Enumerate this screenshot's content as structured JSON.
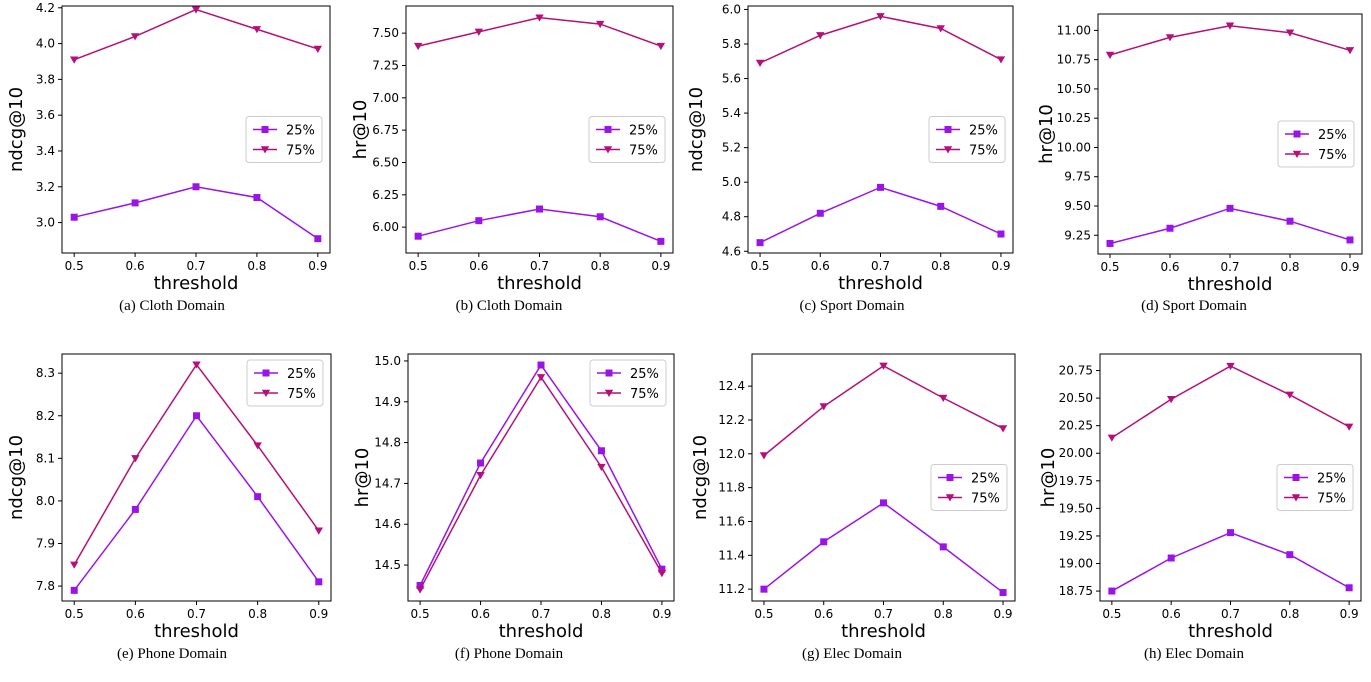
{
  "colors": {
    "s25": "#9a14e8",
    "s75": "#b5107a",
    "axis": "#000000"
  },
  "markers": {
    "s25": "square",
    "s75": "triangle-down"
  },
  "chart_data": [
    {
      "type": "line",
      "caption": "(a)  Cloth Domain",
      "xlabel": "threshold",
      "ylabel": "ndcg@10",
      "x": [
        0.5,
        0.6,
        0.7,
        0.8,
        0.9
      ],
      "xticks": [
        "0.5",
        "0.6",
        "0.7",
        "0.8",
        "0.9"
      ],
      "xlim": [
        0.48,
        0.92
      ],
      "ylim": [
        2.83,
        4.21
      ],
      "yticks": [
        "3.0",
        "3.2",
        "3.4",
        "3.6",
        "3.8",
        "4.0",
        "4.2"
      ],
      "legend": "center-right",
      "series": [
        {
          "name": "25%",
          "values": [
            3.03,
            3.11,
            3.2,
            3.14,
            2.91
          ]
        },
        {
          "name": "75%",
          "values": [
            3.91,
            4.04,
            4.19,
            4.08,
            3.97
          ]
        }
      ]
    },
    {
      "type": "line",
      "caption": "(b)  Cloth Domain",
      "xlabel": "threshold",
      "ylabel": "hr@10",
      "x": [
        0.5,
        0.6,
        0.7,
        0.8,
        0.9
      ],
      "xticks": [
        "0.5",
        "0.6",
        "0.7",
        "0.8",
        "0.9"
      ],
      "xlim": [
        0.48,
        0.92
      ],
      "ylim": [
        5.8,
        7.71
      ],
      "yticks": [
        "6.00",
        "6.25",
        "6.50",
        "6.75",
        "7.00",
        "7.25",
        "7.50"
      ],
      "legend": "center-right",
      "series": [
        {
          "name": "25%",
          "values": [
            5.93,
            6.05,
            6.14,
            6.08,
            5.89
          ]
        },
        {
          "name": "75%",
          "values": [
            7.4,
            7.51,
            7.62,
            7.57,
            7.4
          ]
        }
      ]
    },
    {
      "type": "line",
      "caption": "(c)  Sport Domain",
      "xlabel": "threshold",
      "ylabel": "ndcg@10",
      "x": [
        0.5,
        0.6,
        0.7,
        0.8,
        0.9
      ],
      "xticks": [
        "0.5",
        "0.6",
        "0.7",
        "0.8",
        "0.9"
      ],
      "xlim": [
        0.48,
        0.92
      ],
      "ylim": [
        4.59,
        6.02
      ],
      "yticks": [
        "4.6",
        "4.8",
        "5.0",
        "5.2",
        "5.4",
        "5.6",
        "5.8",
        "6.0"
      ],
      "legend": "center-right",
      "series": [
        {
          "name": "25%",
          "values": [
            4.65,
            4.82,
            4.97,
            4.86,
            4.7
          ]
        },
        {
          "name": "75%",
          "values": [
            5.69,
            5.85,
            5.96,
            5.89,
            5.71
          ]
        }
      ]
    },
    {
      "type": "line",
      "caption": "(d)  Sport Domain",
      "xlabel": "threshold",
      "ylabel": "hr@10",
      "x": [
        0.5,
        0.6,
        0.7,
        0.8,
        0.9
      ],
      "xticks": [
        "0.5",
        "0.6",
        "0.7",
        "0.8",
        "0.9"
      ],
      "xlim": [
        0.48,
        0.92
      ],
      "ylim": [
        9.09,
        11.14
      ],
      "yticks": [
        "9.25",
        "9.50",
        "9.75",
        "10.00",
        "10.25",
        "10.50",
        "10.75",
        "11.00"
      ],
      "legend": "center-right",
      "series": [
        {
          "name": "25%",
          "values": [
            9.18,
            9.31,
            9.48,
            9.37,
            9.21
          ]
        },
        {
          "name": "75%",
          "values": [
            10.79,
            10.94,
            11.04,
            10.98,
            10.83
          ]
        }
      ]
    },
    {
      "type": "line",
      "caption": "(e)  Phone Domain",
      "xlabel": "threshold",
      "ylabel": "ndcg@10",
      "x": [
        0.5,
        0.6,
        0.7,
        0.8,
        0.9
      ],
      "xticks": [
        "0.5",
        "0.6",
        "0.7",
        "0.8",
        "0.9"
      ],
      "xlim": [
        0.48,
        0.92
      ],
      "ylim": [
        7.765,
        8.345
      ],
      "yticks": [
        "7.8",
        "7.9",
        "8.0",
        "8.1",
        "8.2",
        "8.3"
      ],
      "legend": "upper-right",
      "series": [
        {
          "name": "25%",
          "values": [
            7.79,
            7.98,
            8.2,
            8.01,
            7.81
          ]
        },
        {
          "name": "75%",
          "values": [
            7.85,
            8.1,
            8.32,
            8.13,
            7.93
          ]
        }
      ]
    },
    {
      "type": "line",
      "caption": "(f)  Phone Domain",
      "xlabel": "threshold",
      "ylabel": "hr@10",
      "x": [
        0.5,
        0.6,
        0.7,
        0.8,
        0.9
      ],
      "xticks": [
        "0.5",
        "0.6",
        "0.7",
        "0.8",
        "0.9"
      ],
      "xlim": [
        0.48,
        0.92
      ],
      "ylim": [
        14.412,
        15.017
      ],
      "yticks": [
        "14.5",
        "14.6",
        "14.7",
        "14.8",
        "14.9",
        "15.0"
      ],
      "legend": "upper-right",
      "series": [
        {
          "name": "25%",
          "values": [
            14.45,
            14.75,
            14.99,
            14.78,
            14.49
          ]
        },
        {
          "name": "75%",
          "values": [
            14.44,
            14.72,
            14.96,
            14.74,
            14.48
          ]
        }
      ]
    },
    {
      "type": "line",
      "caption": "(g)  Elec Domain",
      "xlabel": "threshold",
      "ylabel": "ndcg@10",
      "x": [
        0.5,
        0.6,
        0.7,
        0.8,
        0.9
      ],
      "xticks": [
        "0.5",
        "0.6",
        "0.7",
        "0.8",
        "0.9"
      ],
      "xlim": [
        0.48,
        0.92
      ],
      "ylim": [
        11.13,
        12.59
      ],
      "yticks": [
        "11.2",
        "11.4",
        "11.6",
        "11.8",
        "12.0",
        "12.2",
        "12.4"
      ],
      "legend": "center-right",
      "series": [
        {
          "name": "25%",
          "values": [
            11.2,
            11.48,
            11.71,
            11.45,
            11.18
          ]
        },
        {
          "name": "75%",
          "values": [
            11.99,
            12.28,
            12.52,
            12.33,
            12.15
          ]
        }
      ]
    },
    {
      "type": "line",
      "caption": "(h)  Elec Domain",
      "xlabel": "threshold",
      "ylabel": "hr@10",
      "x": [
        0.5,
        0.6,
        0.7,
        0.8,
        0.9
      ],
      "xticks": [
        "0.5",
        "0.6",
        "0.7",
        "0.8",
        "0.9"
      ],
      "xlim": [
        0.48,
        0.92
      ],
      "ylim": [
        18.66,
        20.9
      ],
      "yticks": [
        "18.75",
        "19.00",
        "19.25",
        "19.50",
        "19.75",
        "20.00",
        "20.25",
        "20.50",
        "20.75"
      ],
      "legend": "center-right",
      "series": [
        {
          "name": "25%",
          "values": [
            18.75,
            19.05,
            19.28,
            19.08,
            18.78
          ]
        },
        {
          "name": "75%",
          "values": [
            20.14,
            20.49,
            20.79,
            20.53,
            20.24
          ]
        }
      ]
    }
  ]
}
